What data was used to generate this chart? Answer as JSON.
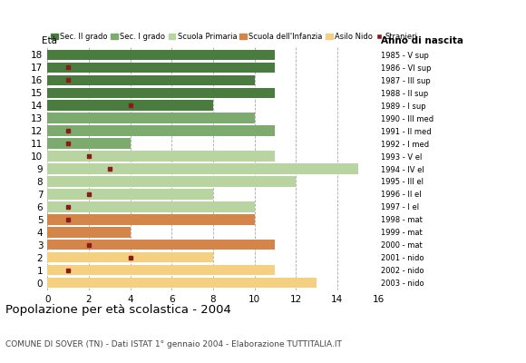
{
  "ages": [
    18,
    17,
    16,
    15,
    14,
    13,
    12,
    11,
    10,
    9,
    8,
    7,
    6,
    5,
    4,
    3,
    2,
    1,
    0
  ],
  "bar_values": [
    11,
    11,
    10,
    11,
    8,
    10,
    11,
    4,
    11,
    15,
    12,
    8,
    10,
    10,
    4,
    11,
    8,
    11,
    13
  ],
  "stranieri": [
    0,
    1,
    1,
    0,
    4,
    0,
    1,
    1,
    2,
    3,
    0,
    2,
    1,
    1,
    0,
    2,
    4,
    1,
    0
  ],
  "right_labels": [
    "1985 - V sup",
    "1986 - VI sup",
    "1987 - III sup",
    "1988 - II sup",
    "1989 - I sup",
    "1990 - III med",
    "1991 - II med",
    "1992 - I med",
    "1993 - V el",
    "1994 - IV el",
    "1995 - III el",
    "1996 - II el",
    "1997 - I el",
    "1998 - mat",
    "1999 - mat",
    "2000 - mat",
    "2001 - nido",
    "2002 - nido",
    "2003 - nido"
  ],
  "colors": {
    "Sec. II grado": "#4a7c3f",
    "Sec. I grado": "#7daa6e",
    "Scuola Primaria": "#b8d4a0",
    "Scuola dell'Infanzia": "#d4854a",
    "Asilo Nido": "#f5d080",
    "Stranieri": "#8b1a1a"
  },
  "age_to_school": {
    "18": "Sec. II grado",
    "17": "Sec. II grado",
    "16": "Sec. II grado",
    "15": "Sec. II grado",
    "14": "Sec. II grado",
    "13": "Sec. I grado",
    "12": "Sec. I grado",
    "11": "Sec. I grado",
    "10": "Scuola Primaria",
    "9": "Scuola Primaria",
    "8": "Scuola Primaria",
    "7": "Scuola Primaria",
    "6": "Scuola Primaria",
    "5": "Scuola dell'Infanzia",
    "4": "Scuola dell'Infanzia",
    "3": "Scuola dell'Infanzia",
    "2": "Asilo Nido",
    "1": "Asilo Nido",
    "0": "Asilo Nido"
  },
  "legend_order": [
    "Sec. II grado",
    "Sec. I grado",
    "Scuola Primaria",
    "Scuola dell'Infanzia",
    "Asilo Nido",
    "Stranieri"
  ],
  "title": "Popolazione per età scolastica - 2004",
  "subtitle": "COMUNE DI SOVER (TN) - Dati ISTAT 1° gennaio 2004 - Elaborazione TUTTITALIA.IT",
  "eta_label": "Età",
  "anno_label": "Anno di nascita",
  "xlim": [
    0,
    16
  ],
  "bar_height": 0.82
}
